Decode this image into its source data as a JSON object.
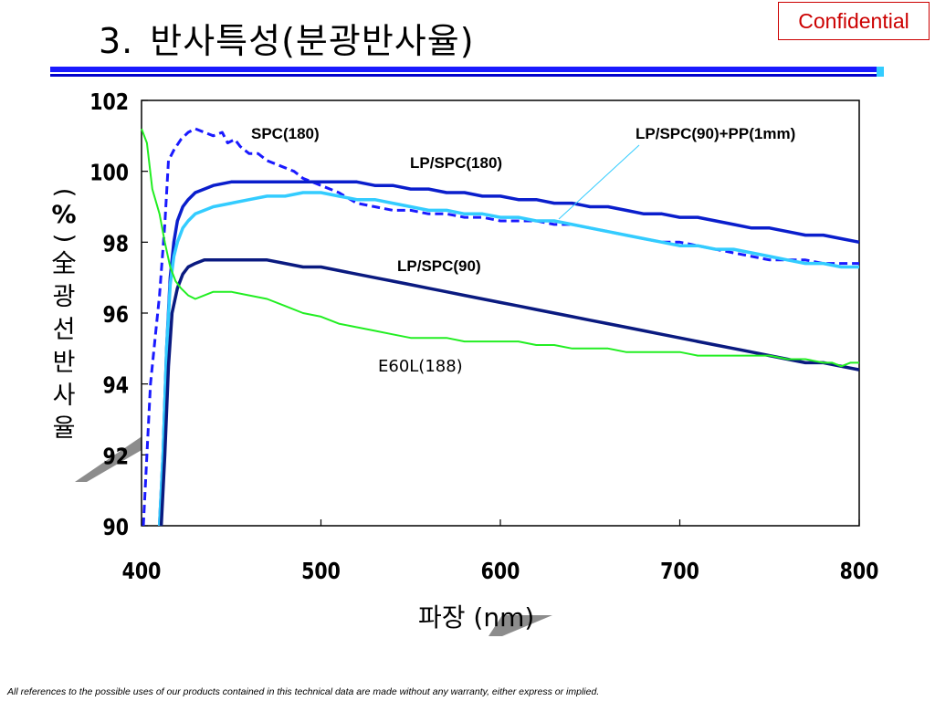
{
  "slide": {
    "title_number": "3.",
    "title_text": "반사특성(분광반사율)",
    "confidential": "Confidential",
    "footer": "All references to the possible uses of our products contained in this technical data are made without any warranty, either express or implied."
  },
  "colors": {
    "accent_blue": "#1a1aff",
    "confidential_red": "#cc0000"
  },
  "chart_data": {
    "type": "line",
    "xlabel": "파장 (nm)",
    "ylabel_chars": [
      "(",
      "%",
      ")",
      "全",
      "광",
      "선",
      "반",
      "사",
      "율"
    ],
    "xlim": [
      400,
      800
    ],
    "ylim": [
      90,
      102
    ],
    "x_ticks": [
      "400",
      "500",
      "600",
      "700",
      "800"
    ],
    "y_ticks": [
      "90",
      "92",
      "94",
      "96",
      "98",
      "100",
      "102"
    ],
    "grid": false,
    "series": [
      {
        "name": "SPC(180)",
        "color": "#1a1aff",
        "style": "dashed",
        "width": 3,
        "x": [
          401,
          403,
          405,
          408,
          410,
          413,
          415,
          418,
          422,
          426,
          430,
          435,
          440,
          445,
          448,
          452,
          455,
          460,
          465,
          470,
          475,
          480,
          485,
          490,
          495,
          500,
          510,
          520,
          530,
          540,
          550,
          560,
          570,
          580,
          590,
          600,
          610,
          620,
          630,
          640,
          650,
          660,
          670,
          680,
          690,
          700,
          710,
          720,
          730,
          740,
          750,
          760,
          770,
          780,
          790,
          800
        ],
        "y": [
          90,
          92,
          94,
          95.5,
          96.5,
          98.5,
          100.3,
          100.6,
          100.9,
          101.1,
          101.2,
          101.1,
          101,
          101.1,
          100.8,
          100.9,
          100.7,
          100.5,
          100.5,
          100.3,
          100.2,
          100.1,
          100,
          99.8,
          99.7,
          99.6,
          99.4,
          99.1,
          99.0,
          98.9,
          98.9,
          98.8,
          98.8,
          98.7,
          98.7,
          98.6,
          98.6,
          98.6,
          98.5,
          98.5,
          98.4,
          98.3,
          98.2,
          98.1,
          98.0,
          98.0,
          97.9,
          97.8,
          97.7,
          97.6,
          97.5,
          97.5,
          97.5,
          97.4,
          97.4,
          97.4
        ]
      },
      {
        "name": "LP/SPC(180)",
        "color": "#0a1ecc",
        "style": "solid",
        "width": 3.5,
        "x": [
          410,
          412,
          414,
          416,
          418,
          420,
          423,
          426,
          430,
          435,
          440,
          450,
          460,
          470,
          480,
          490,
          500,
          510,
          520,
          530,
          540,
          550,
          560,
          570,
          580,
          590,
          600,
          610,
          620,
          630,
          640,
          650,
          660,
          670,
          680,
          690,
          700,
          710,
          720,
          730,
          740,
          750,
          760,
          770,
          780,
          790,
          800
        ],
        "y": [
          90,
          92,
          95,
          97,
          98,
          98.6,
          99.0,
          99.2,
          99.4,
          99.5,
          99.6,
          99.7,
          99.7,
          99.7,
          99.7,
          99.7,
          99.7,
          99.7,
          99.7,
          99.6,
          99.6,
          99.5,
          99.5,
          99.4,
          99.4,
          99.3,
          99.3,
          99.2,
          99.2,
          99.1,
          99.1,
          99.0,
          99.0,
          98.9,
          98.8,
          98.8,
          98.7,
          98.7,
          98.6,
          98.5,
          98.4,
          98.4,
          98.3,
          98.2,
          98.2,
          98.1,
          98.0
        ]
      },
      {
        "name": "LP/SPC(90)+PP(1mm)",
        "color": "#33ccff",
        "style": "solid",
        "width": 3.5,
        "x": [
          410,
          412,
          414,
          416,
          418,
          420,
          423,
          426,
          430,
          435,
          440,
          450,
          460,
          470,
          480,
          490,
          500,
          510,
          520,
          530,
          540,
          550,
          560,
          570,
          580,
          590,
          600,
          610,
          620,
          630,
          640,
          650,
          660,
          670,
          680,
          690,
          700,
          710,
          720,
          730,
          740,
          750,
          760,
          770,
          780,
          790,
          800
        ],
        "y": [
          90,
          92,
          95,
          96.8,
          97.6,
          98.0,
          98.4,
          98.6,
          98.8,
          98.9,
          99.0,
          99.1,
          99.2,
          99.3,
          99.3,
          99.4,
          99.4,
          99.3,
          99.2,
          99.2,
          99.1,
          99.0,
          98.9,
          98.9,
          98.8,
          98.8,
          98.7,
          98.7,
          98.6,
          98.6,
          98.5,
          98.4,
          98.3,
          98.2,
          98.1,
          98.0,
          97.9,
          97.9,
          97.8,
          97.8,
          97.7,
          97.6,
          97.5,
          97.4,
          97.4,
          97.3,
          97.3
        ]
      },
      {
        "name": "LP/SPC(90)",
        "color": "#0a1a80",
        "style": "solid",
        "width": 3.5,
        "x": [
          411,
          413,
          415,
          417,
          420,
          423,
          426,
          430,
          435,
          440,
          450,
          460,
          470,
          480,
          490,
          500,
          510,
          520,
          530,
          540,
          550,
          560,
          570,
          580,
          590,
          600,
          610,
          620,
          630,
          640,
          650,
          660,
          670,
          680,
          690,
          700,
          710,
          720,
          730,
          740,
          750,
          760,
          770,
          780,
          790,
          800
        ],
        "y": [
          90,
          92,
          94.5,
          96,
          96.7,
          97.1,
          97.3,
          97.4,
          97.5,
          97.5,
          97.5,
          97.5,
          97.5,
          97.4,
          97.3,
          97.3,
          97.2,
          97.1,
          97.0,
          96.9,
          96.8,
          96.7,
          96.6,
          96.5,
          96.4,
          96.3,
          96.2,
          96.1,
          96.0,
          95.9,
          95.8,
          95.7,
          95.6,
          95.5,
          95.4,
          95.3,
          95.2,
          95.1,
          95.0,
          94.9,
          94.8,
          94.7,
          94.6,
          94.6,
          94.5,
          94.4
        ]
      },
      {
        "name": "E60L(188)",
        "color": "#22ee22",
        "style": "solid",
        "width": 2,
        "x": [
          400,
          403,
          406,
          410,
          413,
          416,
          419,
          422,
          426,
          430,
          435,
          440,
          450,
          460,
          470,
          480,
          490,
          500,
          510,
          520,
          530,
          540,
          550,
          560,
          570,
          580,
          590,
          600,
          610,
          620,
          630,
          640,
          650,
          660,
          670,
          680,
          690,
          700,
          710,
          720,
          730,
          740,
          750,
          760,
          770,
          780,
          785,
          790,
          795,
          800
        ],
        "y": [
          101.2,
          100.8,
          99.5,
          98.8,
          98.0,
          97.3,
          96.9,
          96.7,
          96.5,
          96.4,
          96.5,
          96.6,
          96.6,
          96.5,
          96.4,
          96.2,
          96.0,
          95.9,
          95.7,
          95.6,
          95.5,
          95.4,
          95.3,
          95.3,
          95.3,
          95.2,
          95.2,
          95.2,
          95.2,
          95.1,
          95.1,
          95.0,
          95.0,
          95.0,
          94.9,
          94.9,
          94.9,
          94.9,
          94.8,
          94.8,
          94.8,
          94.8,
          94.8,
          94.7,
          94.7,
          94.6,
          94.6,
          94.5,
          94.6,
          94.6
        ]
      }
    ],
    "annotations": [
      {
        "text": "SPC(180)"
      },
      {
        "text": "LP/SPC(90)+PP(1mm)"
      },
      {
        "text": "LP/SPC(180)"
      },
      {
        "text": "LP/SPC(90)"
      },
      {
        "text": "E60L(188)"
      }
    ]
  }
}
